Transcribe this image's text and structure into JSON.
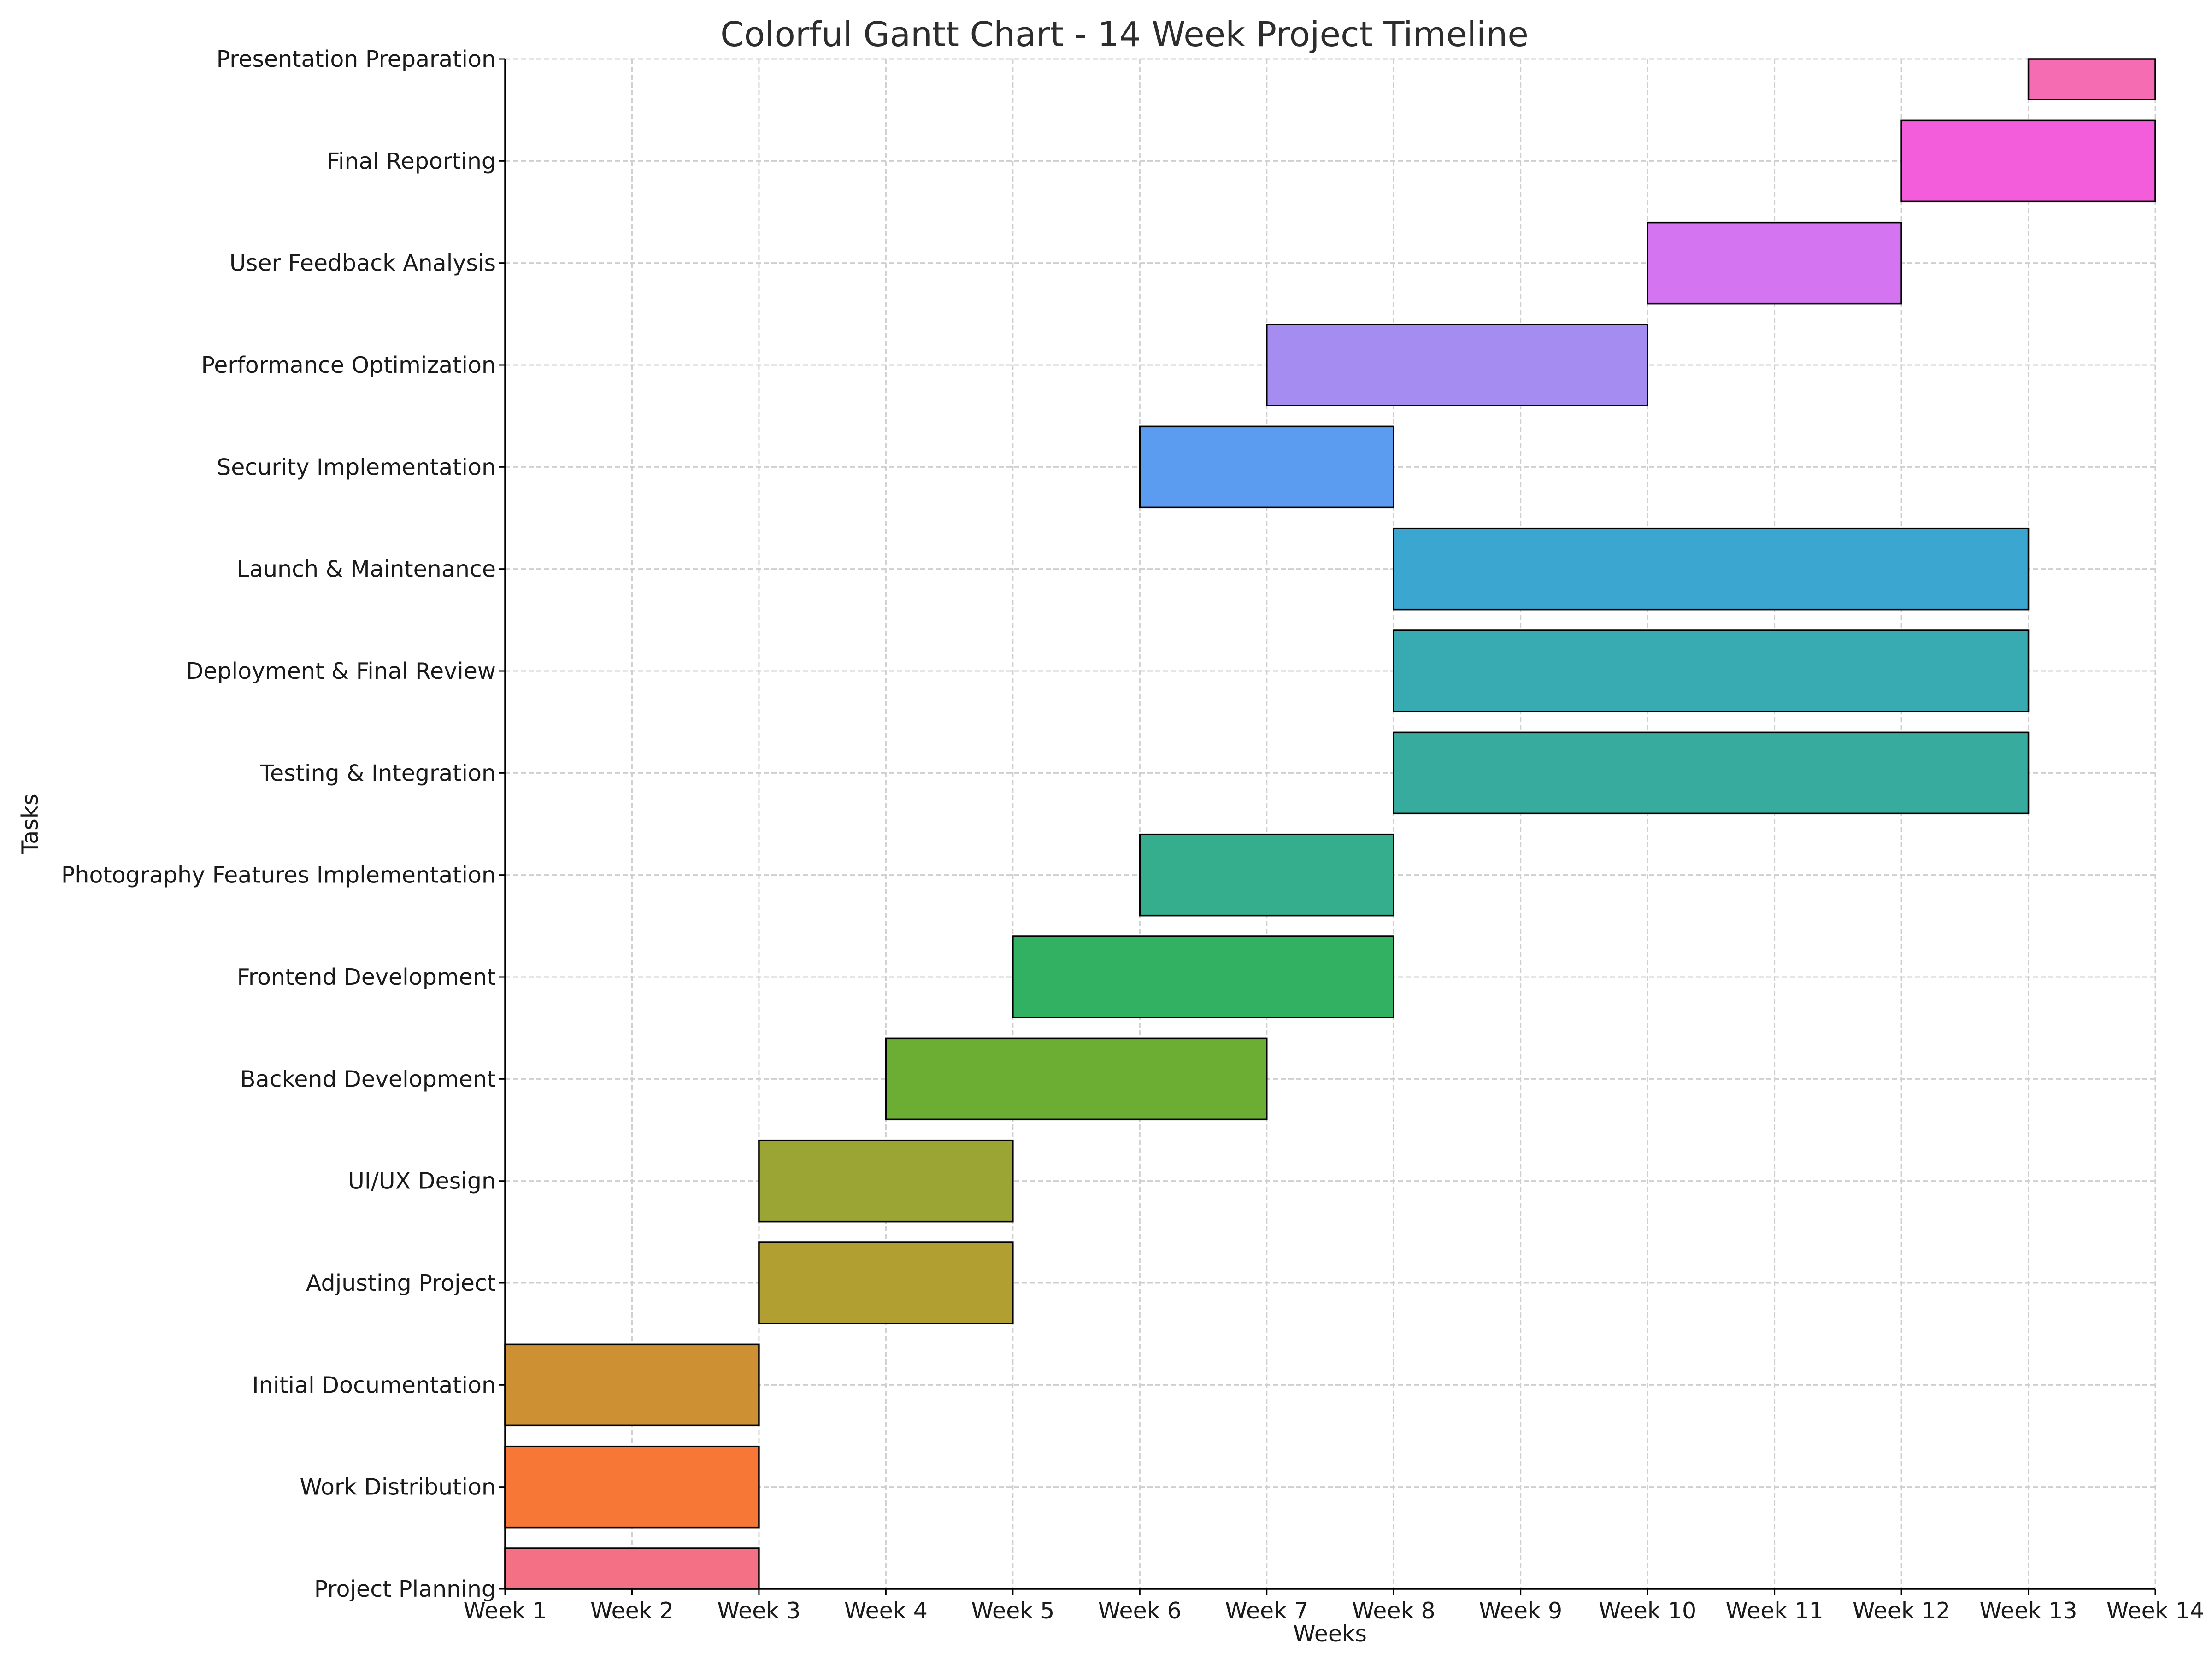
{
  "chart_data": {
    "type": "gantt",
    "title": "Colorful Gantt Chart - 14 Week Project Timeline",
    "xlabel": "Weeks",
    "ylabel": "Tasks",
    "x_ticks": [
      "Week 1",
      "Week 2",
      "Week 3",
      "Week 4",
      "Week 5",
      "Week 6",
      "Week 7",
      "Week 8",
      "Week 9",
      "Week 10",
      "Week 11",
      "Week 12",
      "Week 13",
      "Week 14"
    ],
    "xlim": [
      1,
      14
    ],
    "grid": true,
    "tasks": [
      {
        "name": "Project Planning",
        "start": 1,
        "end": 3,
        "color": "#f47185"
      },
      {
        "name": "Work Distribution",
        "start": 1,
        "end": 3,
        "color": "#f77836"
      },
      {
        "name": "Initial Documentation",
        "start": 1,
        "end": 3,
        "color": "#cd9134"
      },
      {
        "name": "Adjusting Project",
        "start": 3,
        "end": 5,
        "color": "#b19f32"
      },
      {
        "name": "UI/UX Design",
        "start": 3,
        "end": 5,
        "color": "#9aa533"
      },
      {
        "name": "Backend Development",
        "start": 4,
        "end": 7,
        "color": "#6cae34"
      },
      {
        "name": "Frontend Development",
        "start": 5,
        "end": 8,
        "color": "#33b162"
      },
      {
        "name": "Photography Features Implementation",
        "start": 6,
        "end": 8,
        "color": "#35ae8e"
      },
      {
        "name": "Testing & Integration",
        "start": 8,
        "end": 13,
        "color": "#36ab9e"
      },
      {
        "name": "Deployment & Final Review",
        "start": 8,
        "end": 13,
        "color": "#38aab2"
      },
      {
        "name": "Launch & Maintenance",
        "start": 8,
        "end": 13,
        "color": "#3ba6d0"
      },
      {
        "name": "Security Implementation",
        "start": 6,
        "end": 8,
        "color": "#5c9cf0"
      },
      {
        "name": "Performance Optimization",
        "start": 7,
        "end": 10,
        "color": "#a58cf1"
      },
      {
        "name": "User Feedback Analysis",
        "start": 10,
        "end": 12,
        "color": "#d474f0"
      },
      {
        "name": "Final Reporting",
        "start": 12,
        "end": 14,
        "color": "#f35ddc"
      },
      {
        "name": "Presentation Preparation",
        "start": 13,
        "end": 14,
        "color": "#f56cb3"
      }
    ]
  }
}
